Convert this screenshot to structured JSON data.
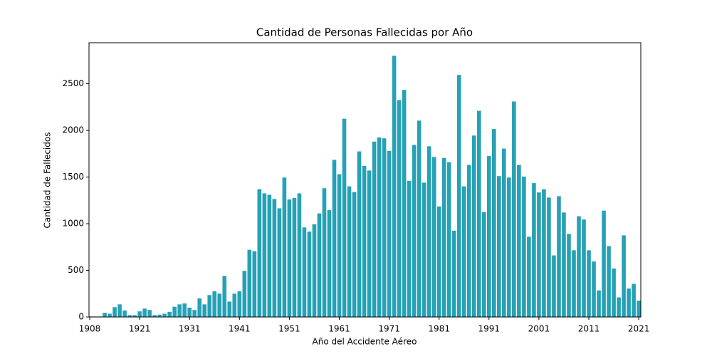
{
  "chart_data": {
    "type": "bar",
    "title": "Cantidad de Personas Fallecidas por Año",
    "xlabel": "Año del Accidente Aéreo",
    "ylabel": "Cantidad de Fallecidos",
    "categories": [
      "1908",
      null,
      null,
      null,
      null,
      null,
      null,
      null,
      null,
      null,
      "1921",
      null,
      null,
      null,
      null,
      null,
      null,
      null,
      null,
      null,
      "1931",
      null,
      null,
      null,
      null,
      null,
      null,
      null,
      null,
      null,
      "1941",
      null,
      null,
      null,
      null,
      null,
      null,
      null,
      null,
      null,
      "1951",
      null,
      null,
      null,
      null,
      null,
      null,
      null,
      null,
      null,
      "1961",
      null,
      null,
      null,
      null,
      null,
      null,
      null,
      null,
      null,
      "1971",
      null,
      null,
      null,
      null,
      null,
      null,
      null,
      null,
      null,
      "1981",
      null,
      null,
      null,
      null,
      null,
      null,
      null,
      null,
      null,
      "1991",
      null,
      null,
      null,
      null,
      null,
      null,
      null,
      null,
      null,
      "2001",
      null,
      null,
      null,
      null,
      null,
      null,
      null,
      null,
      null,
      "2011",
      null,
      null,
      null,
      null,
      null,
      null,
      null,
      null,
      null,
      "2021"
    ],
    "values": [
      5,
      5,
      5,
      45,
      35,
      105,
      135,
      70,
      20,
      20,
      60,
      90,
      75,
      20,
      25,
      35,
      55,
      110,
      135,
      145,
      100,
      75,
      200,
      135,
      235,
      275,
      250,
      440,
      165,
      250,
      275,
      495,
      720,
      705,
      1370,
      1325,
      1310,
      1265,
      1165,
      1495,
      1260,
      1275,
      1325,
      960,
      915,
      995,
      1110,
      1380,
      1145,
      1685,
      1530,
      2125,
      1400,
      1340,
      1775,
      1620,
      1570,
      1880,
      1925,
      1915,
      1780,
      2800,
      2325,
      2435,
      1460,
      1845,
      2105,
      1440,
      1830,
      1715,
      1185,
      1705,
      1660,
      925,
      2595,
      1400,
      1630,
      1945,
      2210,
      1125,
      1725,
      2015,
      1510,
      1805,
      1495,
      2310,
      1630,
      1505,
      860,
      1435,
      1335,
      1370,
      1280,
      660,
      1295,
      1120,
      890,
      715,
      1080,
      1045,
      715,
      595,
      285,
      1140,
      760,
      520,
      210,
      875,
      305,
      355,
      175
    ],
    "color": "#26a1b5",
    "ylim": [
      0,
      2940
    ],
    "yticks": [
      0,
      500,
      1000,
      1500,
      2000,
      2500
    ]
  }
}
